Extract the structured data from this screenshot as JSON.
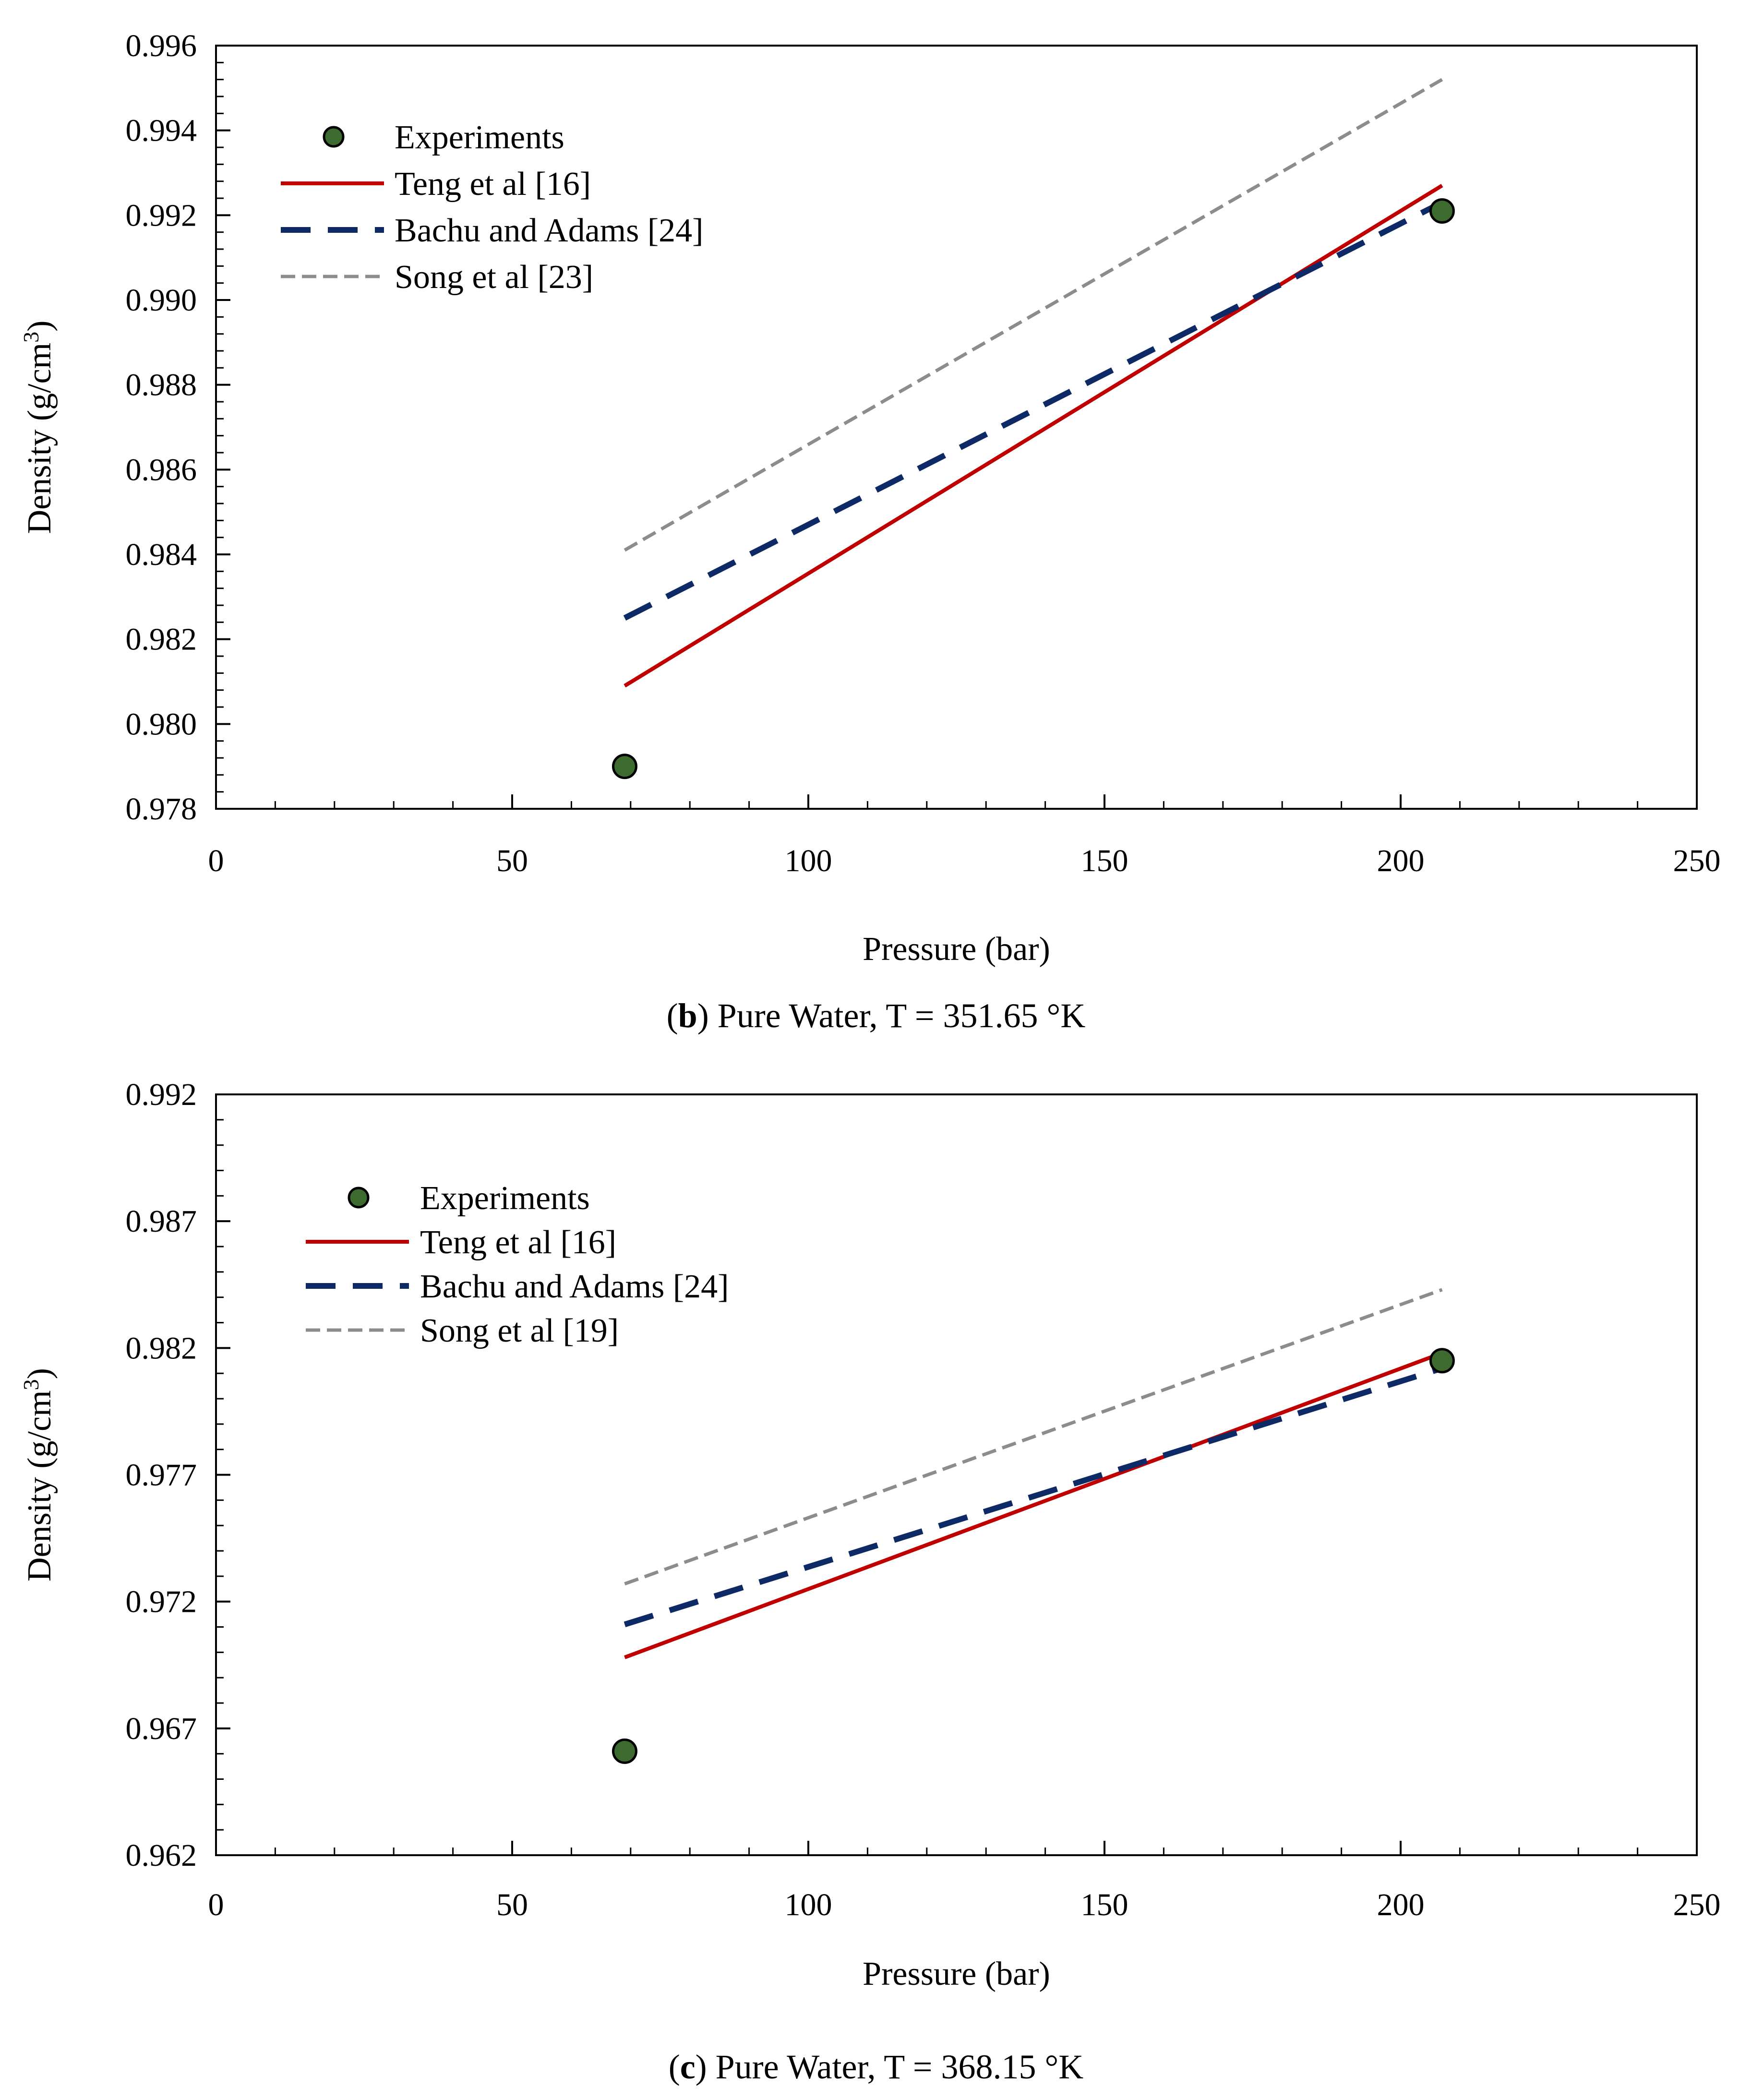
{
  "chart_data": [
    {
      "type": "line",
      "panel_letter": "b",
      "caption": ") Pure Water, T = 351.65 °K",
      "xlabel": "Pressure (bar)",
      "ylabel_main": "Density (g/cm",
      "ylabel_sup": "3",
      "ylabel_end": ")",
      "xlim": [
        0,
        250
      ],
      "ylim": [
        0.978,
        0.996
      ],
      "xticks": [
        0,
        50,
        100,
        150,
        200,
        250
      ],
      "yticks": [
        0.978,
        0.98,
        0.982,
        0.984,
        0.986,
        0.988,
        0.99,
        0.992,
        0.994,
        0.996
      ],
      "ytick_labels": [
        "0.978",
        "0.980",
        "0.982",
        "0.984",
        "0.986",
        "0.988",
        "0.990",
        "0.992",
        "0.994",
        "0.996"
      ],
      "legend_position": "top-left",
      "series": [
        {
          "name": "Experiments",
          "style": "marker",
          "color": "#3d6b2f",
          "x": [
            69,
            207
          ],
          "y": [
            0.979,
            0.9921
          ]
        },
        {
          "name": "Teng et al [16]",
          "style": "solid",
          "color": "#c00000",
          "x": [
            69,
            207
          ],
          "y": [
            0.9809,
            0.9927
          ]
        },
        {
          "name": "Bachu and Adams [24]",
          "style": "dashed",
          "color": "#0d2a66",
          "x": [
            69,
            207
          ],
          "y": [
            0.9825,
            0.9923
          ]
        },
        {
          "name": "Song et al [23]",
          "style": "double-dash",
          "color": "#8c8c8c",
          "x": [
            69,
            207
          ],
          "y": [
            0.9841,
            0.9952
          ]
        }
      ]
    },
    {
      "type": "line",
      "panel_letter": "c",
      "caption": ") Pure Water, T = 368.15 °K",
      "xlabel": "Pressure (bar)",
      "ylabel_main": "Density (g/cm",
      "ylabel_sup": "3",
      "ylabel_end": ")",
      "xlim": [
        0,
        250
      ],
      "ylim": [
        0.962,
        0.992
      ],
      "xticks": [
        0,
        50,
        100,
        150,
        200,
        250
      ],
      "yticks": [
        0.962,
        0.967,
        0.972,
        0.977,
        0.982,
        0.987,
        0.992
      ],
      "ytick_labels": [
        "0.962",
        "0.967",
        "0.972",
        "0.977",
        "0.982",
        "0.987",
        "0.992"
      ],
      "legend_position": "top-left",
      "series": [
        {
          "name": "Experiments",
          "style": "marker",
          "color": "#3d6b2f",
          "x": [
            69,
            207
          ],
          "y": [
            0.9661,
            0.9815
          ]
        },
        {
          "name": "Teng et al [16]",
          "style": "solid",
          "color": "#c00000",
          "x": [
            69,
            207
          ],
          "y": [
            0.9698,
            0.9818
          ]
        },
        {
          "name": "Bachu and Adams [24]",
          "style": "dashed",
          "color": "#0d2a66",
          "x": [
            69,
            207
          ],
          "y": [
            0.9711,
            0.9812
          ]
        },
        {
          "name": "Song et al [19]",
          "style": "double-dash",
          "color": "#8c8c8c",
          "x": [
            69,
            207
          ],
          "y": [
            0.9727,
            0.9843
          ]
        }
      ]
    }
  ]
}
